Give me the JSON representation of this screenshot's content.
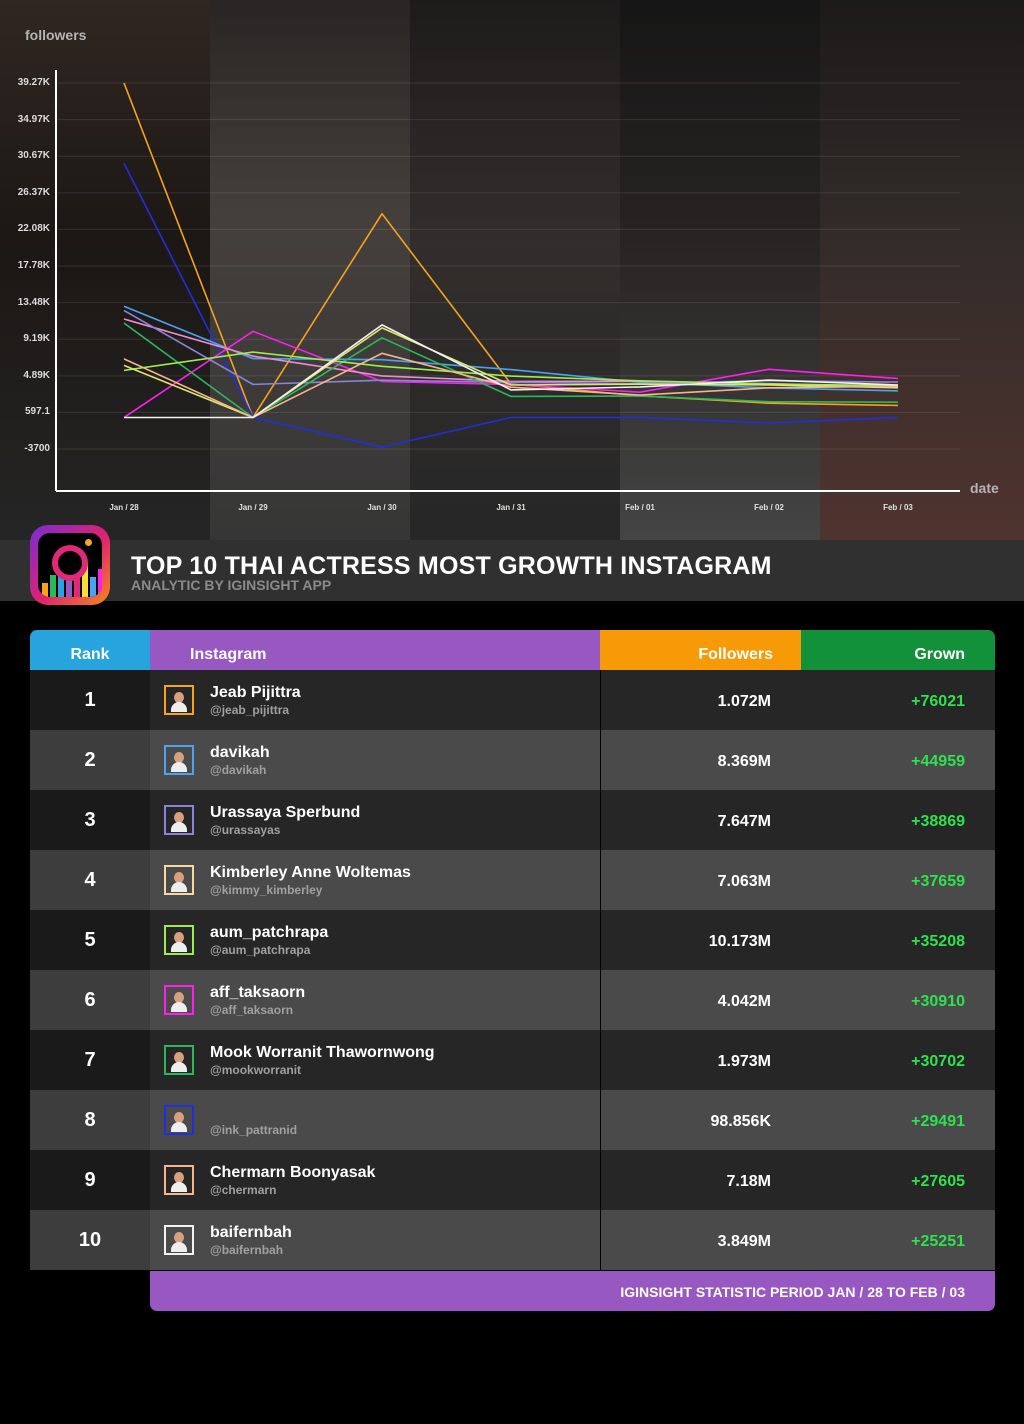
{
  "chart_data": {
    "type": "line",
    "ylabel": "followers",
    "xlabel": "date",
    "categories": [
      "Jan / 28",
      "Jan / 29",
      "Jan / 30",
      "Jan / 31",
      "Feb / 01",
      "Feb / 02",
      "Feb / 03"
    ],
    "ytick_labels": [
      "39.27K",
      "34.97K",
      "30.67K",
      "26.37K",
      "22.08K",
      "17.78K",
      "13.48K",
      "9.19K",
      "4.89K",
      "597.1",
      "-3700"
    ],
    "yticks": [
      39270,
      34970,
      30670,
      26370,
      22080,
      17780,
      13480,
      9190,
      4890,
      597.1,
      -3700
    ],
    "ylim": [
      -7000,
      40000
    ],
    "grid": true,
    "legend": "none",
    "series": [
      {
        "color": "#f7a21b",
        "values": [
          39270,
          0,
          23920,
          3930,
          2550,
          1680,
          1420
        ]
      },
      {
        "color": "#1f2ee0",
        "values": [
          29830,
          0,
          -3460,
          0,
          0,
          -650,
          0
        ]
      },
      {
        "color": "#4aa3f0",
        "values": [
          13050,
          6910,
          6780,
          5620,
          4130,
          3470,
          3120
        ]
      },
      {
        "color": "#ff1ef0",
        "values": [
          0,
          10120,
          4230,
          3870,
          2970,
          5660,
          4580
        ]
      },
      {
        "color": "#f08ad0",
        "values": [
          11560,
          7210,
          4880,
          4240,
          4260,
          3970,
          3610
        ]
      },
      {
        "color": "#8a84d8",
        "values": [
          12560,
          3890,
          4380,
          4130,
          3970,
          4320,
          4150
        ]
      },
      {
        "color": "#2ab85a",
        "values": [
          11080,
          0,
          9360,
          2470,
          2510,
          1850,
          1800
        ]
      },
      {
        "color": "#9aed4d",
        "values": [
          5530,
          7680,
          6010,
          4860,
          4310,
          3930,
          3730
        ]
      },
      {
        "color": "#d9e86a",
        "values": [
          6110,
          0,
          10520,
          3810,
          3910,
          3820,
          3480
        ]
      },
      {
        "color": "#f7b48a",
        "values": [
          6880,
          0,
          7540,
          3550,
          2630,
          3480,
          3670
        ]
      },
      {
        "color": "#f2f2f2",
        "values": [
          0,
          0,
          10870,
          3240,
          3590,
          4390,
          3810
        ]
      }
    ]
  },
  "banner": {
    "title": "TOP 10 THAI ACTRESS MOST GROWTH INSTAGRAM",
    "subtitle": "ANALYTIC BY IGINSIGHT APP",
    "logo_icon": "instagram-chart-logo-icon"
  },
  "table": {
    "headers": {
      "rank": "Rank",
      "instagram": "Instagram",
      "followers": "Followers",
      "grown": "Grown"
    },
    "header_colors": {
      "rank": "#27a4dd",
      "instagram": "#9758c2",
      "followers": "#f79a07",
      "grown": "#12903a"
    },
    "rows": [
      {
        "rank": "1",
        "name": "Jeab Pijittra",
        "handle": "@jeab_pijittra",
        "followers": "1.072M",
        "grown": "+76021",
        "avatar_border": "#f7a21b"
      },
      {
        "rank": "2",
        "name": "davikah",
        "handle": "@davikah",
        "followers": "8.369M",
        "grown": "+44959",
        "avatar_border": "#4aa3f0"
      },
      {
        "rank": "3",
        "name": "Urassaya Sperbund",
        "handle": "@urassayas",
        "followers": "7.647M",
        "grown": "+38869",
        "avatar_border": "#8a84d8"
      },
      {
        "rank": "4",
        "name": "Kimberley Anne Woltemas",
        "handle": "@kimmy_kimberley",
        "followers": "7.063M",
        "grown": "+37659",
        "avatar_border": "#f7d9a0"
      },
      {
        "rank": "5",
        "name": "aum_patchrapa",
        "handle": "@aum_patchrapa",
        "followers": "10.173M",
        "grown": "+35208",
        "avatar_border": "#9aed4d"
      },
      {
        "rank": "6",
        "name": "aff_taksaorn",
        "handle": "@aff_taksaorn",
        "followers": "4.042M",
        "grown": "+30910",
        "avatar_border": "#ff1ef0"
      },
      {
        "rank": "7",
        "name": "Mook Worranit Thawornwong",
        "handle": "@mookworranit",
        "followers": "1.973M",
        "grown": "+30702",
        "avatar_border": "#2ab85a"
      },
      {
        "rank": "8",
        "name": "",
        "handle": "@ink_pattranid",
        "followers": "98.856K",
        "grown": "+29491",
        "avatar_border": "#1f2ee0"
      },
      {
        "rank": "9",
        "name": "Chermarn Boonyasak",
        "handle": "@chermarn",
        "followers": "7.18M",
        "grown": "+27605",
        "avatar_border": "#f7b48a"
      },
      {
        "rank": "10",
        "name": "baifernbah",
        "handle": "@baifernbah",
        "followers": "3.849M",
        "grown": "+25251",
        "avatar_border": "#f2f2f2"
      }
    ]
  },
  "footer": {
    "period": "IGINSIGHT STATISTIC PERIOD JAN / 28 TO FEB / 03"
  },
  "colors": {
    "grown_text": "#2ee24f",
    "background": "#000000"
  }
}
